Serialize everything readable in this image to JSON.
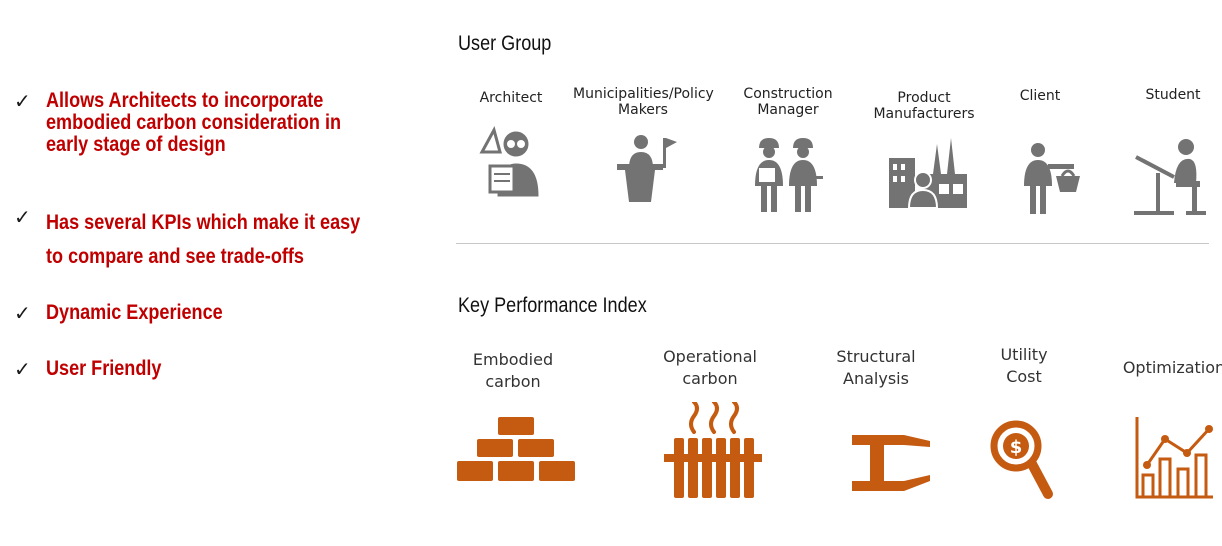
{
  "bullets": [
    {
      "lines": [
        "Allows Architects to incorporate",
        "embodied carbon consideration in",
        "early stage of design"
      ]
    },
    {
      "lines": [
        "Has several KPIs which make it easy",
        "to compare and see trade-offs"
      ]
    },
    {
      "lines": [
        "Dynamic Experience"
      ]
    },
    {
      "lines": [
        "User Friendly"
      ]
    }
  ],
  "check_mark": "✓",
  "user_group": {
    "title": "User Group",
    "items": [
      {
        "label": "Architect",
        "icon": "architect-icon"
      },
      {
        "label": "Municipalities/Policy Makers",
        "icon": "policy-maker-icon"
      },
      {
        "label": "Construction Manager",
        "icon": "construction-workers-icon"
      },
      {
        "label": "Product Manufacturers",
        "icon": "factory-icon"
      },
      {
        "label": "Client",
        "icon": "client-basket-icon"
      },
      {
        "label": "Student",
        "icon": "student-drafting-icon"
      }
    ]
  },
  "kpi": {
    "title": "Key Performance Index",
    "items": [
      {
        "label": "Embodied carbon",
        "icon": "bricks-icon"
      },
      {
        "label": "Operational carbon",
        "icon": "radiator-icon"
      },
      {
        "label": "Structural Analysis",
        "icon": "steel-beam-icon"
      },
      {
        "label": "Utility Cost",
        "icon": "dollar-magnifier-icon"
      },
      {
        "label": "Optimization",
        "icon": "bar-chart-trend-icon"
      }
    ]
  },
  "colors": {
    "accent": "#c00000",
    "icon_gray": "#737373",
    "kpi_orange": "#c55a11"
  }
}
